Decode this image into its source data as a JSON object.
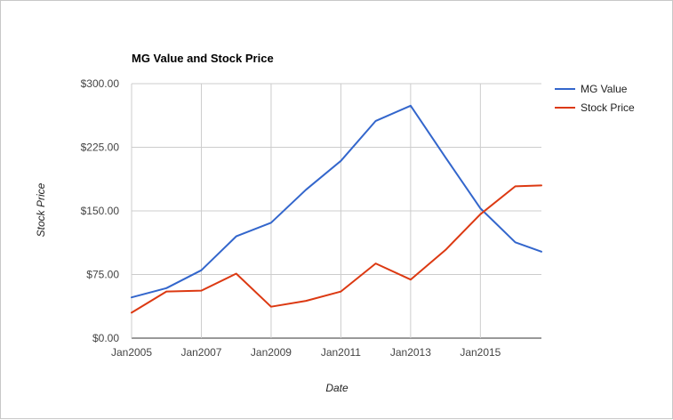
{
  "chart_data": {
    "type": "line",
    "title": "MG Value and Stock Price",
    "xlabel": "Date",
    "ylabel": "Stock Price",
    "x": [
      2005,
      2006,
      2007,
      2008,
      2009,
      2010,
      2011,
      2012,
      2013,
      2014,
      2015,
      2016,
      2016.75
    ],
    "x_tick_labels": [
      "Jan2005",
      "Jan2007",
      "Jan2009",
      "Jan2011",
      "Jan2013",
      "Jan2015"
    ],
    "x_ticks": [
      2005,
      2007,
      2009,
      2011,
      2013,
      2015
    ],
    "xlim": [
      2005,
      2016.75
    ],
    "y_tick_labels": [
      "$0.00",
      "$75.00",
      "$150.00",
      "$225.00",
      "$300.00"
    ],
    "y_ticks": [
      0,
      75,
      150,
      225,
      300
    ],
    "ylim": [
      0,
      300
    ],
    "grid": true,
    "legend_position": "right",
    "series": [
      {
        "name": "MG Value",
        "color": "#3366cc",
        "values": [
          48,
          59,
          80,
          120,
          136,
          175,
          209,
          256,
          274,
          213,
          153,
          113,
          102
        ]
      },
      {
        "name": "Stock Price",
        "color": "#dc3912",
        "values": [
          30,
          55,
          56,
          76,
          37,
          44,
          55,
          88,
          69,
          104,
          146,
          179,
          180
        ]
      }
    ]
  }
}
